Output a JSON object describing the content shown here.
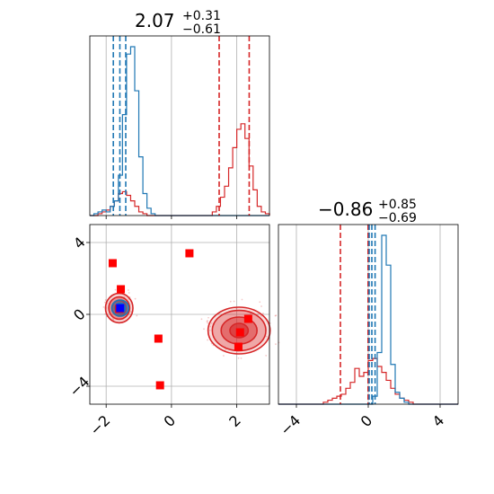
{
  "chart_data": {
    "type": "corner",
    "grid": true,
    "colors": {
      "red": "#d62728",
      "blue": "#1f77b4",
      "marker_red": "#ff0000",
      "marker_blue": "#0000ff"
    },
    "titles": [
      {
        "main": "2.07",
        "sup": "+0.31",
        "sub": "−0.61"
      },
      {
        "main": "−0.86",
        "sup": "+0.85",
        "sub": "−0.69"
      }
    ],
    "ranges": {
      "p0": [
        -2.5,
        3.0
      ],
      "p1": [
        -5.0,
        5.0
      ]
    },
    "tick_labels": {
      "p0": [
        {
          "v": -2,
          "label": "−2"
        },
        {
          "v": 0,
          "label": "0"
        },
        {
          "v": 2,
          "label": "2"
        }
      ],
      "p1": [
        {
          "v": -4,
          "label": "−4"
        },
        {
          "v": 0,
          "label": "0"
        },
        {
          "v": 4,
          "label": "4"
        }
      ]
    },
    "hist_p0": {
      "bin_start": -2.5,
      "bin_width": 0.125,
      "blue_counts": [
        0,
        1,
        2,
        3,
        2,
        5,
        8,
        22,
        55,
        88,
        92,
        68,
        32,
        12,
        4,
        1,
        0,
        0,
        0,
        0,
        0,
        0,
        0,
        0,
        0,
        0,
        0,
        0,
        0,
        0,
        0,
        0,
        0,
        0,
        0,
        0,
        0,
        0,
        0,
        0,
        0,
        0,
        0,
        0
      ],
      "red_counts": [
        0,
        0,
        1,
        2,
        3,
        5,
        8,
        12,
        13,
        11,
        8,
        5,
        2,
        1,
        0,
        0,
        0,
        0,
        0,
        0,
        0,
        0,
        0,
        0,
        0,
        0,
        0,
        0,
        0,
        0,
        2,
        5,
        10,
        16,
        26,
        37,
        47,
        50,
        42,
        27,
        14,
        5,
        2,
        1
      ],
      "blue_quantiles": [
        -1.78,
        -1.58,
        -1.4
      ],
      "red_quantiles": [
        1.46,
        2.07,
        2.38
      ]
    },
    "hist_p1": {
      "bin_start": -5.0,
      "bin_width": 0.25,
      "red_counts": [
        0,
        0,
        0,
        0,
        0,
        0,
        0,
        0,
        0,
        0,
        1,
        2,
        3,
        4,
        5,
        8,
        11,
        18,
        14,
        16,
        22,
        23,
        19,
        16,
        12,
        8,
        5,
        3,
        2,
        1,
        0,
        0,
        0,
        0,
        0,
        0,
        0,
        0,
        0,
        0
      ],
      "blue_counts": [
        0,
        0,
        0,
        0,
        0,
        0,
        0,
        0,
        0,
        0,
        0,
        0,
        0,
        0,
        0,
        0,
        0,
        0,
        0,
        0,
        0,
        4,
        26,
        85,
        70,
        20,
        6,
        3,
        1,
        0,
        0,
        0,
        0,
        0,
        0,
        0,
        0,
        0,
        0,
        0
      ],
      "red_quantiles": [
        -1.55,
        -0.86,
        -0.01
      ],
      "blue_quantiles": [
        0.05,
        0.2,
        0.38
      ]
    },
    "markers_red": [
      [
        -1.8,
        2.85
      ],
      [
        -1.55,
        1.4
      ],
      [
        0.55,
        3.4
      ],
      [
        -0.4,
        -1.35
      ],
      [
        -0.35,
        -3.95
      ],
      [
        2.35,
        -0.25
      ],
      [
        2.1,
        -1.0
      ],
      [
        2.05,
        -1.8
      ],
      [
        -1.6,
        0.3
      ]
    ],
    "marker_blue": [
      -1.57,
      0.35
    ],
    "cluster_red_right": {
      "cx": 2.07,
      "cy": -0.9,
      "levels": [
        [
          0.95,
          1.3
        ],
        [
          0.82,
          1.12
        ],
        [
          0.55,
          0.75
        ],
        [
          0.28,
          0.4
        ]
      ]
    },
    "cluster_red_left": {
      "cx": -1.6,
      "cy": 0.35,
      "levels": [
        [
          0.42,
          0.82
        ],
        [
          0.32,
          0.62
        ],
        [
          0.22,
          0.42
        ]
      ]
    },
    "cluster_blue_left": {
      "cx": -1.57,
      "cy": 0.35,
      "levels": [
        [
          0.26,
          0.45
        ],
        [
          0.16,
          0.28
        ]
      ]
    }
  }
}
